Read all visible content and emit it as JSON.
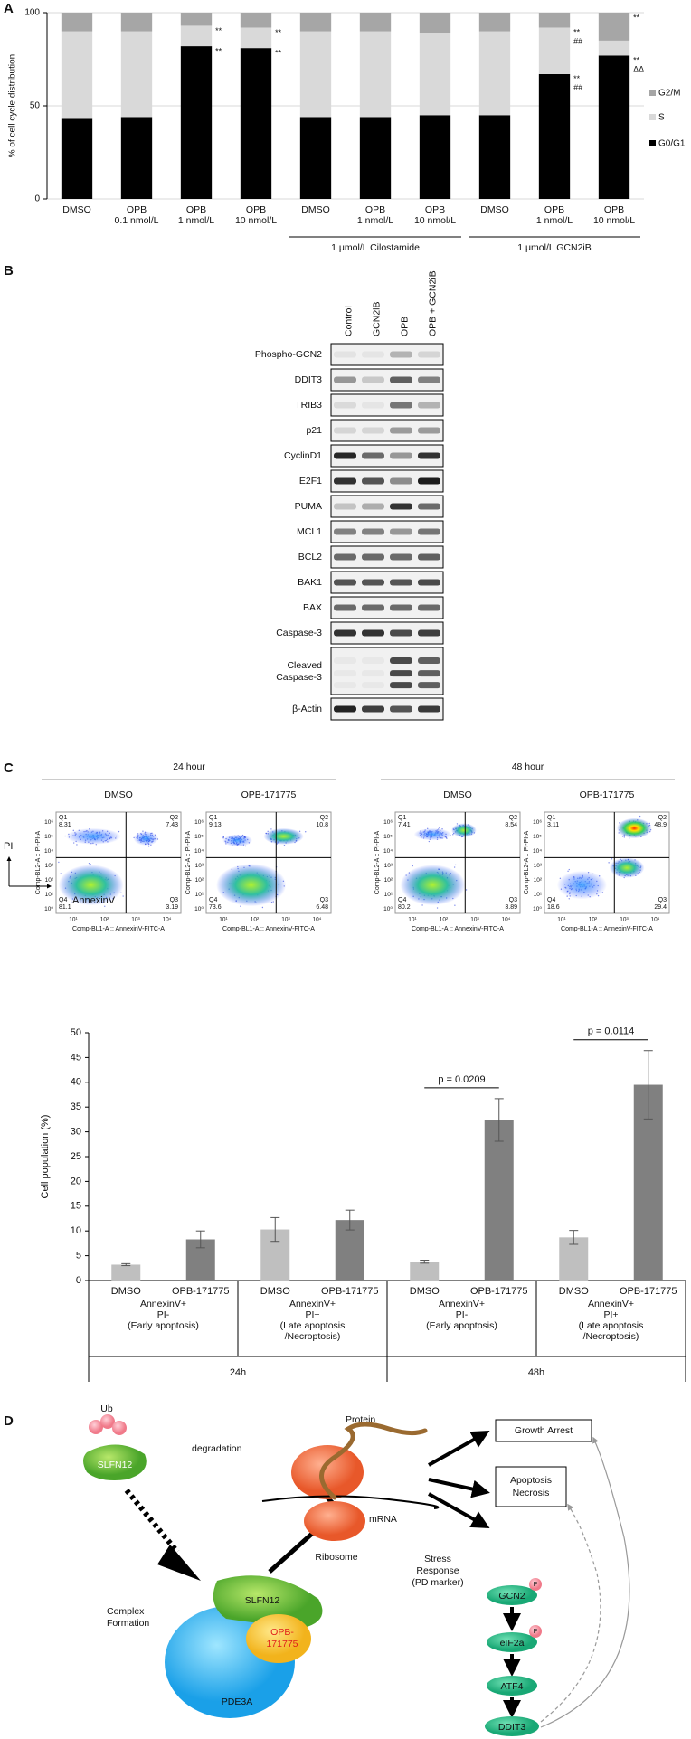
{
  "panels": [
    "A",
    "B",
    "C",
    "D"
  ],
  "chart_data": [
    {
      "type": "bar",
      "stacked": true,
      "ylabel": "% of cell cycle distribution",
      "categories": [
        "DMSO",
        "OPB\n0.1 nmol/L",
        "OPB\n1 nmol/L",
        "OPB\n10 nmol/L",
        "DMSO",
        "OPB\n1 nmol/L",
        "OPB\n10 nmol/L",
        "DMSO",
        "OPB\n1 nmol/L",
        "OPB\n10 nmol/L"
      ],
      "ylim": [
        0,
        100
      ],
      "yticks": [
        0,
        50,
        100
      ],
      "grid": true,
      "legend": "right",
      "series": [
        {
          "name": "G0/G1",
          "color": "#000000",
          "values": [
            43,
            44,
            82,
            81,
            44,
            44,
            45,
            45,
            67,
            77
          ],
          "annotations": [
            null,
            null,
            "**",
            "**",
            null,
            null,
            null,
            null,
            "**\n##",
            "**\nΔΔ"
          ]
        },
        {
          "name": "S",
          "color": "#d9d9d9",
          "values": [
            47,
            46,
            11,
            11,
            46,
            46,
            44,
            45,
            25,
            8
          ],
          "annotations": [
            null,
            null,
            "**",
            "**",
            null,
            null,
            null,
            null,
            "**\n##",
            null
          ]
        },
        {
          "name": "G2/M",
          "color": "#a6a6a6",
          "values": [
            10,
            10,
            7,
            8,
            10,
            10,
            11,
            10,
            8,
            15
          ],
          "annotations": [
            null,
            null,
            null,
            null,
            null,
            null,
            null,
            null,
            null,
            "**"
          ]
        }
      ],
      "groups": [
        {
          "label": "1 μmol/L Cilostamide",
          "first": 4,
          "last": 6
        },
        {
          "label": "1 μmol/L GCN2iB",
          "first": 7,
          "last": 9
        }
      ]
    },
    {
      "type": "bar",
      "ylabel": "Cell population (%)",
      "categories": [
        "DMSO",
        "OPB-171775",
        "DMSO",
        "OPB-171775",
        "DMSO",
        "OPB-171775",
        "DMSO",
        "OPB-171775"
      ],
      "values": [
        3.2,
        8.3,
        10.3,
        12.2,
        3.8,
        32.4,
        8.7,
        39.5
      ],
      "errors": [
        0.2,
        1.7,
        2.4,
        2.0,
        0.3,
        4.3,
        1.4,
        6.9
      ],
      "colors": [
        "#bfbfbf",
        "#808080",
        "#bfbfbf",
        "#808080",
        "#bfbfbf",
        "#808080",
        "#bfbfbf",
        "#808080"
      ],
      "ylim": [
        0,
        50
      ],
      "yticks": [
        0,
        5,
        10,
        15,
        20,
        25,
        30,
        35,
        40,
        45,
        50
      ],
      "groups": [
        "AnnexinV+\nPI-\n(Early apoptosis)",
        "AnnexinV+\nPI+\n(Late apoptosis\n/Necroptosis)",
        "AnnexinV+\nPI-\n(Early apoptosis)",
        "AnnexinV+\nPI+\n(Late apoptosis\n/Necroptosis)"
      ],
      "periods": [
        "24h",
        "48h"
      ],
      "comparisons": [
        {
          "label": "p = 0.0209",
          "bars": [
            4,
            5
          ]
        },
        {
          "label": "p = 0.0114",
          "bars": [
            6,
            7
          ]
        }
      ]
    }
  ],
  "blot": {
    "columns": [
      "Control",
      "GCN2iB",
      "OPB",
      "OPB + GCN2iB"
    ],
    "rows": [
      "Phospho-GCN2",
      "DDIT3",
      "TRIB3",
      "p21",
      "CyclinD1",
      "E2F1",
      "PUMA",
      "MCL1",
      "BCL2",
      "BAK1",
      "BAX",
      "Caspase-3",
      "Cleaved\nCaspase-3",
      "β-Actin"
    ]
  },
  "flow": {
    "y_axis_label": "Comp-BL2-A :: PI-PI-A",
    "x_axis_label": "Comp-BL1-A :: AnnexinV-FITC-A",
    "yticks": [
      "10⁰",
      "10¹",
      "10²",
      "10³",
      "10⁴",
      "10⁵",
      "10⁶"
    ],
    "xticks": [
      "10¹",
      "10²",
      "10³",
      "10⁴"
    ],
    "axis_y": "PI",
    "axis_x": "AnnexinV",
    "time_points": [
      {
        "label": "24 hour",
        "plots": [
          {
            "title": "DMSO",
            "quadrants": [
              {
                "label": "Q1",
                "value": 8.31
              },
              {
                "label": "Q2",
                "value": 7.43
              },
              {
                "label": "Q3",
                "value": 3.19
              },
              {
                "label": "Q4",
                "value": 81.1
              }
            ]
          },
          {
            "title": "OPB-171775",
            "quadrants": [
              {
                "label": "Q1",
                "value": 9.13
              },
              {
                "label": "Q2",
                "value": 10.8
              },
              {
                "label": "Q3",
                "value": 6.48
              },
              {
                "label": "Q4",
                "value": 73.6
              }
            ]
          }
        ]
      },
      {
        "label": "48 hour",
        "plots": [
          {
            "title": "DMSO",
            "quadrants": [
              {
                "label": "Q1",
                "value": 7.41
              },
              {
                "label": "Q2",
                "value": 8.54
              },
              {
                "label": "Q3",
                "value": 3.89
              },
              {
                "label": "Q4",
                "value": 80.2
              }
            ]
          },
          {
            "title": "OPB-171775",
            "quadrants": [
              {
                "label": "Q1",
                "value": 3.11
              },
              {
                "label": "Q2",
                "value": 48.9
              },
              {
                "label": "Q3",
                "value": 29.4
              },
              {
                "label": "Q4",
                "value": 18.6
              }
            ]
          }
        ]
      }
    ]
  },
  "diagram": {
    "ub": "Ub",
    "degradation": "degradation",
    "slfn12_free": "SLFN12",
    "complex_formation": "Complex\nFormation",
    "slfn12_complex": "SLFN12",
    "compound": "OPB-\n171775",
    "pde3a": "PDE3A",
    "protein": "Protein",
    "mrna": "mRNA",
    "ribosome": "Ribosome",
    "growth_arrest": "Growth Arrest",
    "apoptosis": "Apoptosis\nNecrosis",
    "stress_response": "Stress\nResponse\n(PD marker)",
    "pathway": [
      "GCN2",
      "eIF2a",
      "ATF4",
      "DDIT3"
    ],
    "phospho": "P"
  }
}
